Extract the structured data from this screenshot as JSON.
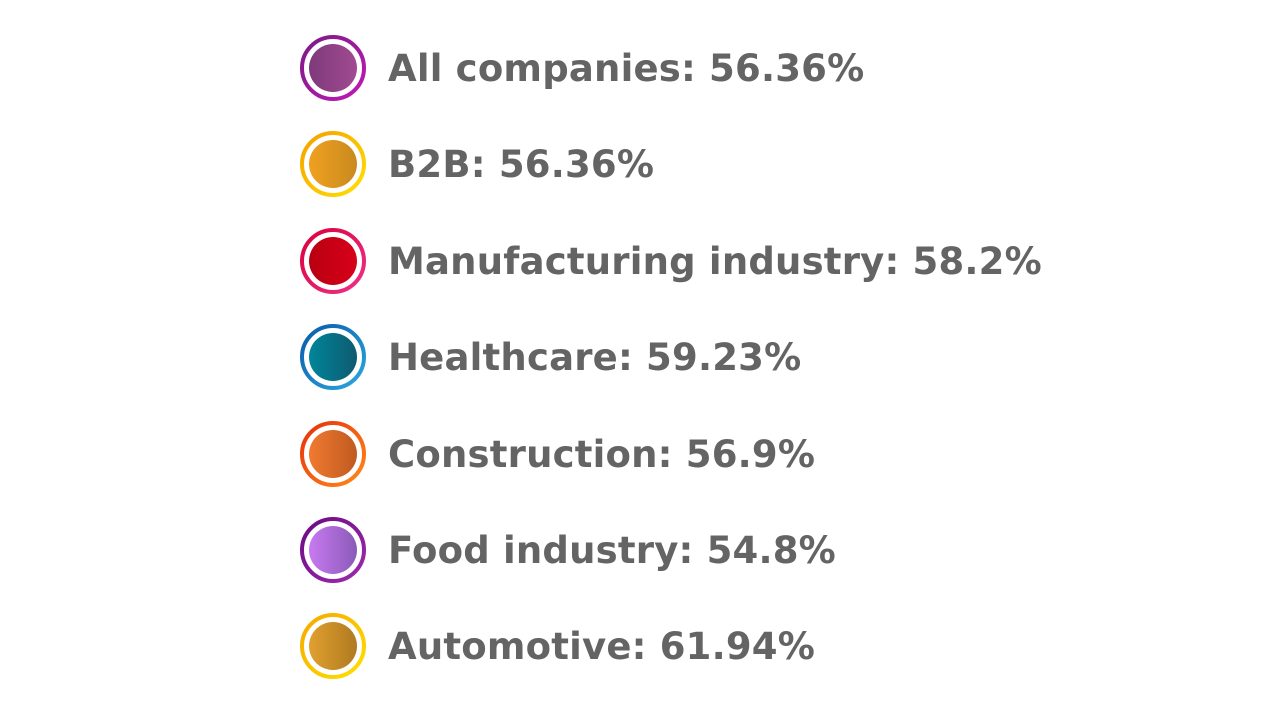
{
  "chart_data": {
    "type": "table",
    "items": [
      {
        "label": "All companies: 56.36%",
        "category": "All companies",
        "value": 56.36,
        "ring_colors": [
          "#7a1a86",
          "#c01ab5"
        ],
        "fill_colors": [
          "#7d3a7a",
          "#a24a92"
        ]
      },
      {
        "label": "B2B: 56.36%",
        "category": "B2B",
        "value": 56.36,
        "ring_colors": [
          "#f5a000",
          "#ffe000"
        ],
        "fill_colors": [
          "#f0a020",
          "#c98a1e"
        ]
      },
      {
        "label": "Manufacturing industry: 58.2%",
        "category": "Manufacturing industry",
        "value": 58.2,
        "ring_colors": [
          "#d8003a",
          "#f0308a"
        ],
        "fill_colors": [
          "#b80010",
          "#d8001a"
        ]
      },
      {
        "label": "Healthcare: 59.23%",
        "category": "Healthcare",
        "value": 59.23,
        "ring_colors": [
          "#0a5aa8",
          "#2aa8e0"
        ],
        "fill_colors": [
          "#00859a",
          "#0e5a70"
        ]
      },
      {
        "label": "Construction: 56.9%",
        "category": "Construction",
        "value": 56.9,
        "ring_colors": [
          "#e8300a",
          "#ff8a1a"
        ],
        "fill_colors": [
          "#f07a30",
          "#c05a20"
        ]
      },
      {
        "label": "Food industry: 54.8%",
        "category": "Food industry",
        "value": 54.8,
        "ring_colors": [
          "#6a0a80",
          "#a02ab0"
        ],
        "fill_colors": [
          "#c87af0",
          "#8a5ab8"
        ]
      },
      {
        "label": "Automotive: 61.94%",
        "category": "Automotive",
        "value": 61.94,
        "ring_colors": [
          "#f5a800",
          "#ffe000"
        ],
        "fill_colors": [
          "#e0a030",
          "#b07a20"
        ]
      }
    ]
  }
}
